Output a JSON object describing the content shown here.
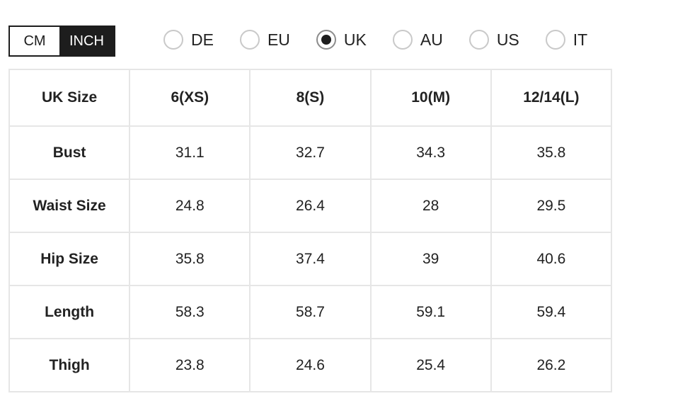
{
  "unit_toggle": {
    "options": [
      {
        "label": "CM",
        "selected": false
      },
      {
        "label": "INCH",
        "selected": true
      }
    ]
  },
  "region_selector": {
    "options": [
      {
        "label": "DE",
        "selected": false
      },
      {
        "label": "EU",
        "selected": false
      },
      {
        "label": "UK",
        "selected": true
      },
      {
        "label": "AU",
        "selected": false
      },
      {
        "label": "US",
        "selected": false
      },
      {
        "label": "IT",
        "selected": false
      }
    ]
  },
  "size_table": {
    "columns": [
      "UK Size",
      "6(XS)",
      "8(S)",
      "10(M)",
      "12/14(L)"
    ],
    "rows": [
      {
        "label": "Bust",
        "values": [
          "31.1",
          "32.7",
          "34.3",
          "35.8"
        ]
      },
      {
        "label": "Waist Size",
        "values": [
          "24.8",
          "26.4",
          "28",
          "29.5"
        ]
      },
      {
        "label": "Hip Size",
        "values": [
          "35.8",
          "37.4",
          "39",
          "40.6"
        ]
      },
      {
        "label": "Length",
        "values": [
          "58.3",
          "58.7",
          "59.1",
          "59.4"
        ]
      },
      {
        "label": "Thigh",
        "values": [
          "23.8",
          "24.6",
          "25.4",
          "26.2"
        ]
      }
    ]
  },
  "colors": {
    "toggle_dark": "#1d1d1d",
    "table_border": "#e6e6e6",
    "radio_border": "#c9c9c9",
    "radio_selected_ring": "#8c8c8c",
    "radio_dot": "#1d1d1d",
    "text": "#222222"
  }
}
